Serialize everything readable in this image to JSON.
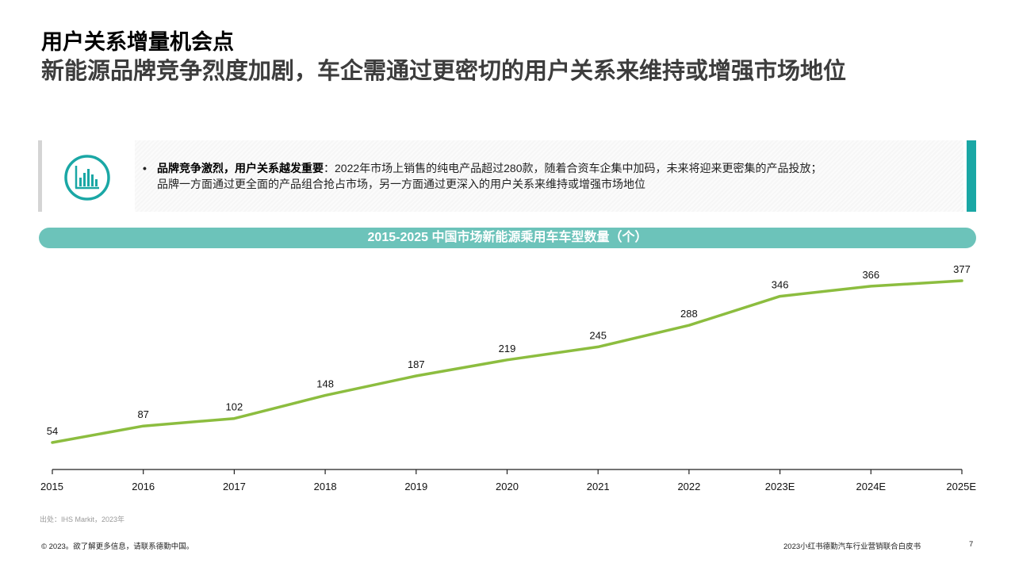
{
  "header": {
    "title": "用户关系增量机会点",
    "subtitle": "新能源品牌竞争烈度加剧，车企需通过更密切的用户关系来维持或增强市场地位"
  },
  "info": {
    "icon": "bar-chart-circle-icon",
    "bullet": "•",
    "bold_text": "品牌竞争激烈，用户关系越发重要",
    "text_line1": "：2022年市场上销售的纯电产品超过280款，随着合资车企集中加码，未来将迎来更密集的产品投放；",
    "text_line2": "品牌一方面通过更全面的产品组合抢占市场，另一方面通过更深入的用户关系来维持或增强市场地位",
    "accent_color": "#1aa7a5"
  },
  "chart_data": {
    "type": "line",
    "title": "2015-2025 中国市场新能源乘用车车型数量（个）",
    "categories": [
      "2015",
      "2016",
      "2017",
      "2018",
      "2019",
      "2020",
      "2021",
      "2022",
      "2023E",
      "2024E",
      "2025E"
    ],
    "series": [
      {
        "values": [
          54,
          87,
          102,
          148,
          187,
          219,
          245,
          288,
          346,
          366,
          377
        ],
        "color": "#8cbd3f"
      }
    ],
    "xlabel": "",
    "ylabel": "",
    "grid": false,
    "data_labels": true
  },
  "footer": {
    "source": "出处：IHS Markit，2023年",
    "copyright": "© 2023。欲了解更多信息，请联系德勤中国。",
    "report_name": "2023小红书德勤汽车行业营销联合白皮书",
    "page_number": "7"
  }
}
